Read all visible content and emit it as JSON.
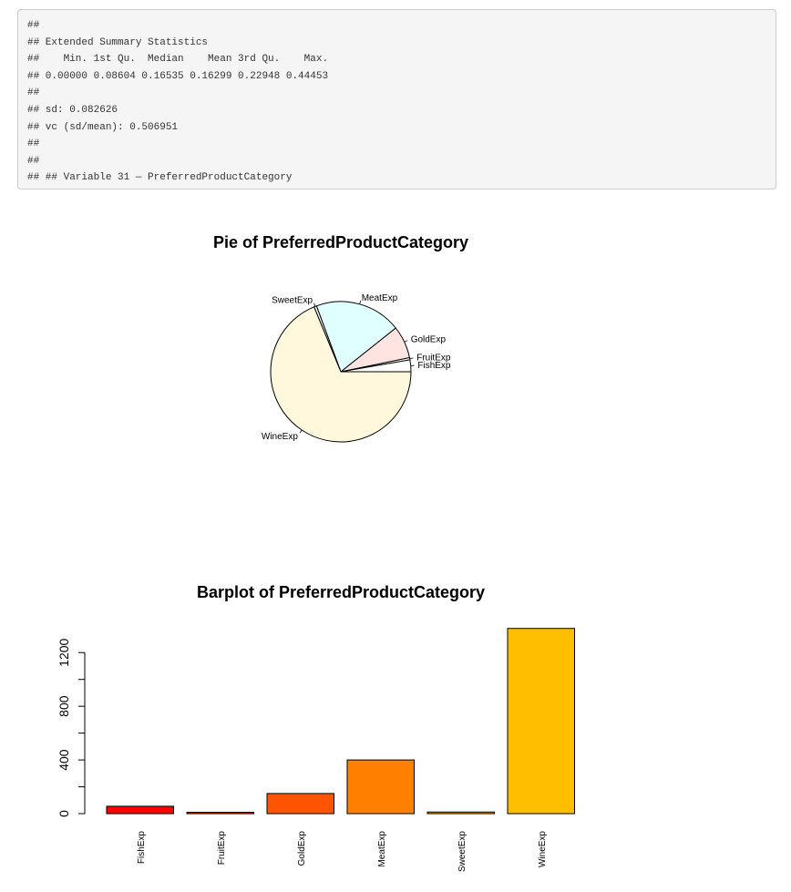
{
  "console": {
    "lines": [
      "##",
      "## Extended Summary Statistics",
      "##    Min. 1st Qu.  Median    Mean 3rd Qu.    Max.",
      "## 0.00000 0.08604 0.16535 0.16299 0.22948 0.44453",
      "##",
      "## sd: 0.082626",
      "## vc (sd/mean): 0.506951",
      "##",
      "##",
      "## ## Variable 31 — PreferredProductCategory"
    ]
  },
  "chart_data": [
    {
      "type": "pie",
      "title": "Pie of PreferredProductCategory",
      "categories": [
        "FishExp",
        "FruitExp",
        "GoldExp",
        "MeatExp",
        "SweetExp",
        "WineExp"
      ],
      "values": [
        55,
        10,
        150,
        400,
        12,
        1380
      ],
      "colors": [
        "#ffffff",
        "#ffffff",
        "#ffe4e1",
        "#e0ffff",
        "#ffffff",
        "#fff8dc"
      ]
    },
    {
      "type": "bar",
      "title": "Barplot of PreferredProductCategory",
      "categories": [
        "FishExp",
        "FruitExp",
        "GoldExp",
        "MeatExp",
        "SweetExp",
        "WineExp"
      ],
      "values": [
        55,
        10,
        150,
        400,
        12,
        1380
      ],
      "colors": [
        "#ff0000",
        "#ff2a00",
        "#ff5500",
        "#ff7f00",
        "#ffaa00",
        "#ffbf00"
      ],
      "yticks": [
        "0",
        "400",
        "800",
        "1200"
      ],
      "ylim": [
        0,
        1400
      ],
      "grid": false
    }
  ]
}
